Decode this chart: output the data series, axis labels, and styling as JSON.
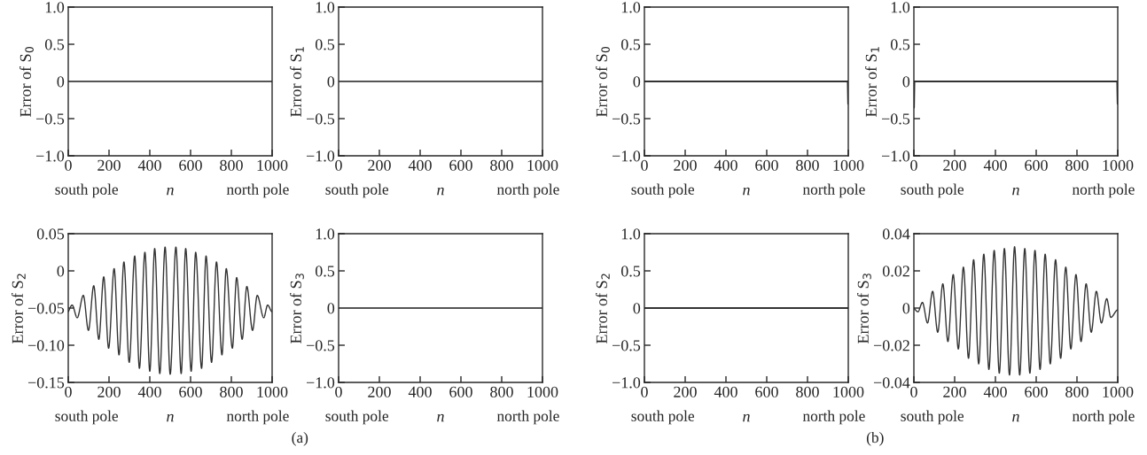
{
  "chart_data": [
    {
      "type": "line",
      "ylabel": "Error of S$_{0}$",
      "xlabel": "n",
      "annotations": [
        "south pole",
        "north pole"
      ],
      "xlim": [
        0,
        1000
      ],
      "ylim": [
        -1.0,
        1.0
      ],
      "xticks": [
        0,
        200,
        400,
        600,
        800,
        1000
      ],
      "yticks": [
        {
          "value": -1.0,
          "label": "−1.0"
        },
        {
          "value": -0.5,
          "label": "−0.5"
        },
        0,
        {
          "value": 0.5,
          "label": "0.5"
        },
        {
          "value": 1.0,
          "label": "1.0"
        }
      ],
      "series": [
        {
          "color": "#555555",
          "x": [
            0,
            1000
          ],
          "values": [
            0,
            0
          ]
        }
      ]
    },
    {
      "type": "line",
      "ylabel": "Error of S$_{1}$",
      "xlabel": "n",
      "annotations": [
        "south pole",
        "north pole"
      ],
      "xlim": [
        0,
        1000
      ],
      "ylim": [
        -1.0,
        1.0
      ],
      "xticks": [
        0,
        200,
        400,
        600,
        800,
        1000
      ],
      "yticks": [
        {
          "value": -1.0,
          "label": "−1.0"
        },
        {
          "value": -0.5,
          "label": "−0.5"
        },
        0,
        {
          "value": 0.5,
          "label": "0.5"
        },
        {
          "value": 1.0,
          "label": "1.0"
        }
      ],
      "series": [
        {
          "color": "#555555",
          "x": [
            0,
            1000
          ],
          "values": [
            0,
            0
          ]
        }
      ]
    },
    {
      "type": "line",
      "ylabel": "Error of S$_{0}$",
      "xlabel": "n",
      "annotations": [
        "south pole",
        "north pole"
      ],
      "xlim": [
        0,
        1000
      ],
      "ylim": [
        -1.0,
        1.0
      ],
      "xticks": [
        0,
        200,
        400,
        600,
        800,
        1000
      ],
      "yticks": [
        {
          "value": -1.0,
          "label": "−1.0"
        },
        {
          "value": -0.5,
          "label": "−0.5"
        },
        0,
        {
          "value": 0.5,
          "label": "0.5"
        },
        {
          "value": 1.0,
          "label": "1.0"
        }
      ],
      "series": [
        {
          "color": "#333333",
          "x": [
            0,
            2,
            998,
            1000
          ],
          "values": [
            0,
            0,
            0,
            -0.3
          ]
        }
      ]
    },
    {
      "type": "line",
      "ylabel": "Error of S$_{1}$",
      "xlabel": "n",
      "annotations": [
        "south pole",
        "north pole"
      ],
      "xlim": [
        0,
        1000
      ],
      "ylim": [
        -1.0,
        1.0
      ],
      "xticks": [
        0,
        200,
        400,
        600,
        800,
        1000
      ],
      "yticks": [
        {
          "value": -1.0,
          "label": "−1.0"
        },
        {
          "value": -0.5,
          "label": "−0.5"
        },
        0,
        {
          "value": 0.5,
          "label": "0.5"
        },
        {
          "value": 1.0,
          "label": "1.0"
        }
      ],
      "series": [
        {
          "color": "#333333",
          "x": [
            0,
            2,
            998,
            1000
          ],
          "values": [
            -0.35,
            0,
            0,
            -0.3
          ]
        }
      ]
    },
    {
      "type": "line",
      "ylabel": "Error of S$_{2}$",
      "xlabel": "n",
      "annotations": [
        "south pole",
        "north pole"
      ],
      "xlim": [
        0,
        1000
      ],
      "ylim": [
        -0.15,
        0.05
      ],
      "xticks": [
        0,
        200,
        400,
        600,
        800,
        1000
      ],
      "yticks": [
        {
          "value": -0.15,
          "label": "−0.15"
        },
        {
          "value": -0.1,
          "label": "−0.10"
        },
        {
          "value": -0.05,
          "label": "−0.05"
        },
        0,
        {
          "value": 0.05,
          "label": "0.05"
        }
      ],
      "series": [
        {
          "color": "#333333",
          "x": [
            0,
            19,
            44,
            74,
            99,
            125,
            150,
            174,
            198,
            225,
            249,
            273,
            299,
            326,
            349,
            376,
            400,
            424,
            449,
            475,
            500,
            528,
            554,
            576,
            603,
            625,
            654,
            676,
            703,
            727,
            754,
            775,
            805,
            826,
            853,
            876,
            904,
            927,
            959,
            978,
            1000
          ],
          "values": [
            -0.055,
            -0.046,
            -0.063,
            -0.033,
            -0.08,
            -0.02,
            -0.092,
            -0.008,
            -0.104,
            0.003,
            -0.113,
            0.012,
            -0.123,
            0.02,
            -0.131,
            0.025,
            -0.135,
            0.03,
            -0.138,
            0.032,
            -0.139,
            0.032,
            -0.138,
            0.03,
            -0.135,
            0.025,
            -0.131,
            0.02,
            -0.123,
            0.012,
            -0.113,
            0.003,
            -0.104,
            -0.009,
            -0.092,
            -0.021,
            -0.08,
            -0.033,
            -0.063,
            -0.046,
            -0.055
          ]
        }
      ]
    },
    {
      "type": "line",
      "ylabel": "Error of S$_{3}$",
      "xlabel": "n",
      "annotations": [
        "south pole",
        "north pole",
        "(a)"
      ],
      "xlim": [
        0,
        1000
      ],
      "ylim": [
        -1.0,
        1.0
      ],
      "xticks": [
        0,
        200,
        400,
        600,
        800,
        1000
      ],
      "yticks": [
        {
          "value": -1.0,
          "label": "−1.0"
        },
        {
          "value": -0.5,
          "label": "−0.5"
        },
        0,
        {
          "value": 0.5,
          "label": "0.5"
        },
        {
          "value": 1.0,
          "label": "1.0"
        }
      ],
      "series": [
        {
          "color": "#555555",
          "x": [
            0,
            1000
          ],
          "values": [
            0,
            0
          ]
        }
      ]
    },
    {
      "type": "line",
      "ylabel": "Error of S$_{2}$",
      "xlabel": "n",
      "annotations": [
        "south pole",
        "north pole"
      ],
      "xlim": [
        0,
        1000
      ],
      "ylim": [
        -1.0,
        1.0
      ],
      "xticks": [
        0,
        200,
        400,
        600,
        800,
        1000
      ],
      "yticks": [
        {
          "value": -1.0,
          "label": "−1.0"
        },
        {
          "value": -0.5,
          "label": "−0.5"
        },
        0,
        {
          "value": 0.5,
          "label": "0.5"
        },
        {
          "value": 1.0,
          "label": "1.0"
        }
      ],
      "series": [
        {
          "color": "#333333",
          "x": [
            0,
            1000
          ],
          "values": [
            0,
            0
          ]
        }
      ]
    },
    {
      "type": "line",
      "ylabel": "Error of S$_{3}$",
      "xlabel": "n",
      "annotations": [
        "south pole",
        "north pole",
        "(b)"
      ],
      "xlim": [
        0,
        1000
      ],
      "ylim": [
        -0.04,
        0.04
      ],
      "xticks": [
        0,
        200,
        400,
        600,
        800,
        1000
      ],
      "yticks": [
        {
          "value": -0.04,
          "label": "−0.04"
        },
        {
          "value": -0.02,
          "label": "−0.02"
        },
        0,
        {
          "value": 0.02,
          "label": "0.02"
        },
        {
          "value": 0.04,
          "label": "0.04"
        }
      ],
      "series": [
        {
          "color": "#333333",
          "x": [
            0,
            20,
            42,
            67,
            92,
            117,
            142,
            167,
            193,
            218,
            243,
            268,
            293,
            318,
            343,
            368,
            394,
            419,
            444,
            469,
            494,
            519,
            544,
            569,
            594,
            619,
            644,
            669,
            695,
            720,
            745,
            770,
            795,
            820,
            845,
            870,
            895,
            920,
            946,
            966,
            1000
          ],
          "values": [
            0,
            -0.002,
            0.003,
            -0.008,
            0.009,
            -0.013,
            0.013,
            -0.018,
            0.018,
            -0.022,
            0.022,
            -0.027,
            0.026,
            -0.03,
            0.029,
            -0.033,
            0.031,
            -0.035,
            0.032,
            -0.036,
            0.033,
            -0.036,
            0.032,
            -0.035,
            0.031,
            -0.033,
            0.029,
            -0.03,
            0.026,
            -0.027,
            0.022,
            -0.022,
            0.018,
            -0.018,
            0.013,
            -0.013,
            0.009,
            -0.008,
            0.005,
            -0.005,
            -0.001
          ]
        }
      ]
    }
  ]
}
